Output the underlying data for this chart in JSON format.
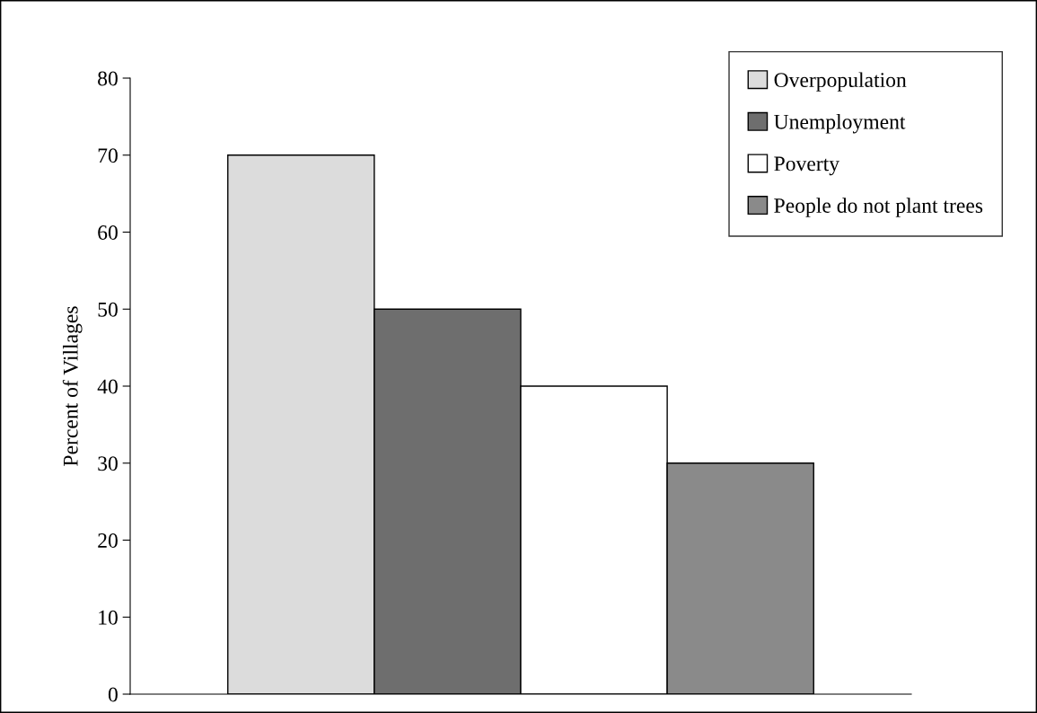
{
  "chart_data": {
    "type": "bar",
    "ylabel": "Percent of Villages",
    "categories": [
      null
    ],
    "series": [
      {
        "name": "Overpopulation",
        "color": "#dcdcdc",
        "values": [
          70
        ]
      },
      {
        "name": "Unemployment",
        "color": "#6e6e6e",
        "values": [
          50
        ]
      },
      {
        "name": "Poverty",
        "color": "#ffffff",
        "values": [
          40
        ]
      },
      {
        "name": "People do not plant trees",
        "color": "#8a8a8a",
        "values": [
          30
        ]
      }
    ],
    "ylim": [
      0,
      80
    ],
    "yticks": [
      0,
      10,
      20,
      30,
      40,
      50,
      60,
      70,
      80
    ],
    "tick_labels": "y",
    "legend": "top right",
    "grid": false
  }
}
